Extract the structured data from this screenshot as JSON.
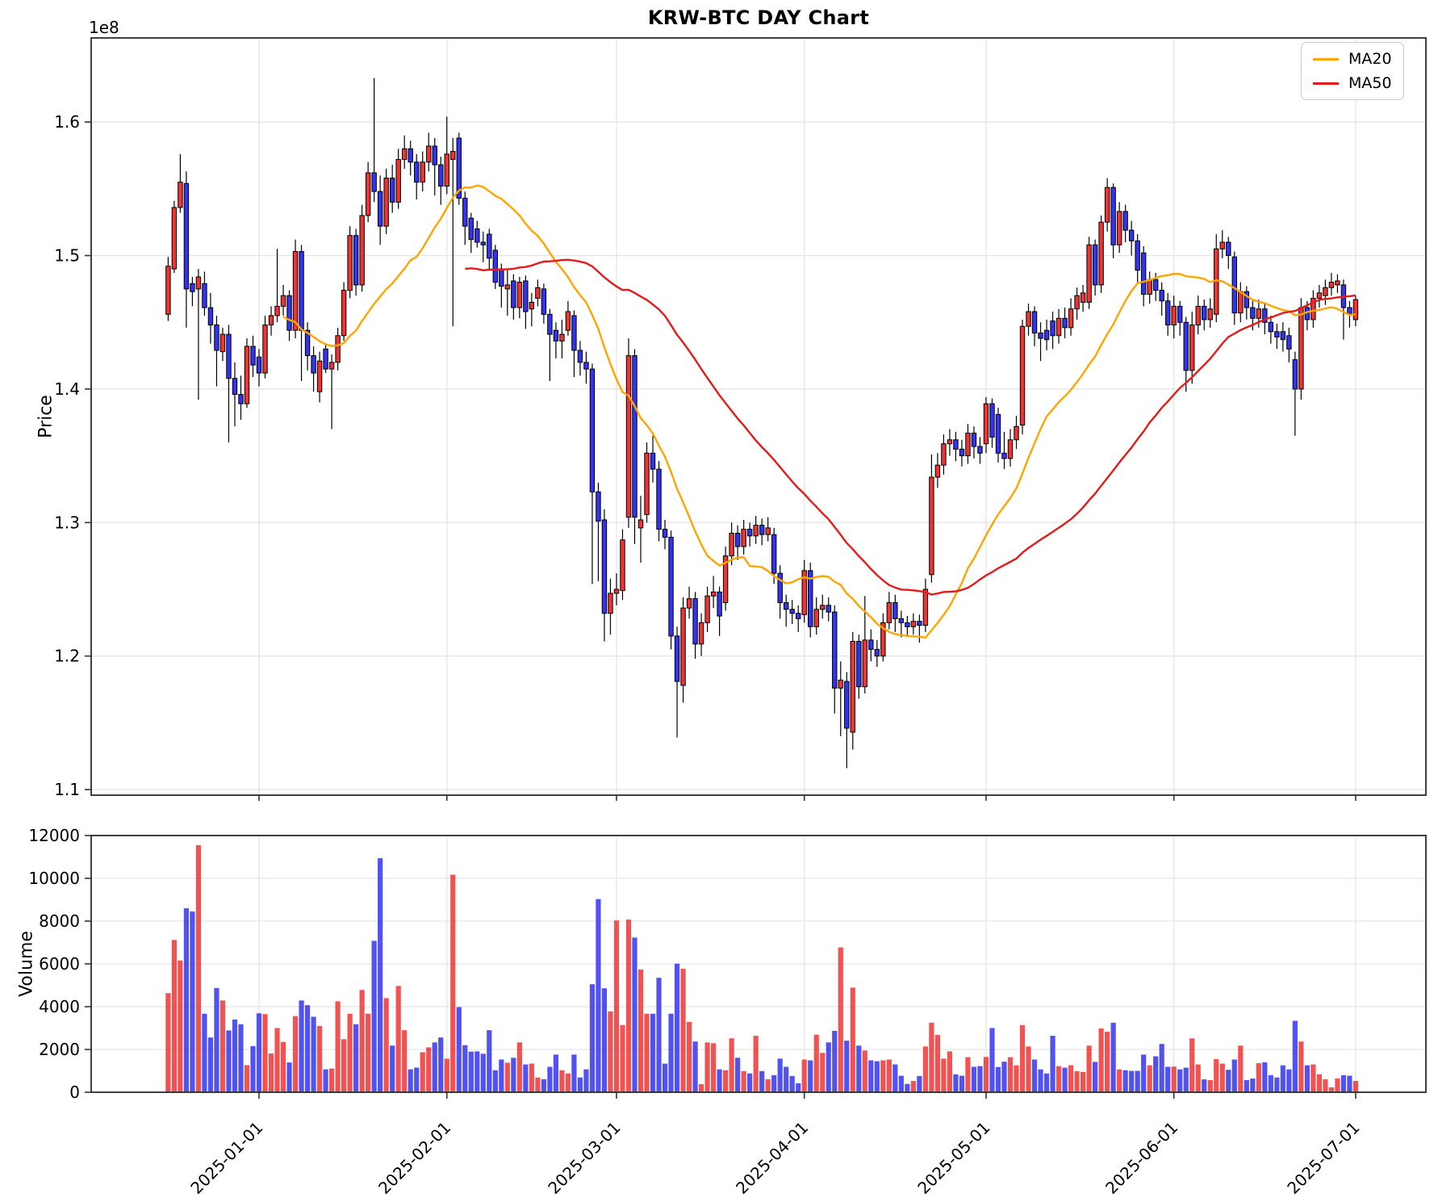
{
  "chart_data": {
    "type": "candlestick",
    "title": "KRW-BTC DAY Chart",
    "grid": true,
    "legend_position": "upper right",
    "legend": [
      {
        "name": "MA20",
        "color": "#ffa500",
        "window": 20
      },
      {
        "name": "MA50",
        "color": "#e51b1b",
        "window": 50
      }
    ],
    "colors": {
      "up": "#ef3434",
      "down": "#3434ef",
      "wick": "#000000",
      "grid": "#e5e5e5",
      "spine": "#2b2b2b"
    },
    "panels": [
      {
        "name": "price",
        "ylabel": "Price",
        "offset_label": "1e8",
        "ylim": [
          1.0958,
          1.663
        ],
        "yticks": [
          1.1,
          1.2,
          1.3,
          1.4,
          1.5,
          1.6
        ]
      },
      {
        "name": "volume",
        "ylabel": "Volume",
        "ylim": [
          0,
          12000
        ],
        "yticks": [
          0,
          2000,
          4000,
          6000,
          8000,
          10000,
          12000
        ]
      }
    ],
    "xticks": [
      {
        "label": "2025-01-01",
        "day": 15
      },
      {
        "label": "2025-02-01",
        "day": 46
      },
      {
        "label": "2025-03-01",
        "day": 74
      },
      {
        "label": "2025-04-01",
        "day": 105
      },
      {
        "label": "2025-05-01",
        "day": 135
      },
      {
        "label": "2025-06-01",
        "day": 166
      },
      {
        "label": "2025-07-01",
        "day": 196
      }
    ],
    "price_unit": "1e8",
    "open": [
      1.456,
      1.49,
      1.536,
      1.554,
      1.479,
      1.475,
      1.479,
      1.461,
      1.448,
      1.428,
      1.441,
      1.408,
      1.396,
      1.389,
      1.432,
      1.424,
      1.412,
      1.448,
      1.455,
      1.462,
      1.47,
      1.444,
      1.503,
      1.444,
      1.425,
      1.398,
      1.43,
      1.415,
      1.42,
      1.44,
      1.474,
      1.515,
      1.478,
      1.53,
      1.562,
      1.548,
      1.522,
      1.558,
      1.54,
      1.572,
      1.58,
      1.57,
      1.555,
      1.57,
      1.582,
      1.568,
      1.552,
      1.572,
      1.588,
      1.543,
      1.528,
      1.52,
      1.51,
      1.516,
      1.504,
      1.49,
      1.475,
      1.481,
      1.461,
      1.481,
      1.46,
      1.468,
      1.475,
      1.456,
      1.444,
      1.436,
      1.444,
      1.455,
      1.429,
      1.42,
      1.415,
      1.323,
      1.302,
      1.232,
      1.247,
      1.249,
      1.304,
      1.425,
      1.296,
      1.306,
      1.352,
      1.34,
      1.295,
      1.289,
      1.215,
      1.178,
      1.236,
      1.243,
      1.209,
      1.225,
      1.245,
      1.248,
      1.24,
      1.275,
      1.292,
      1.282,
      1.295,
      1.29,
      1.298,
      1.291,
      1.291,
      1.262,
      1.24,
      1.235,
      1.232,
      1.231,
      1.264,
      1.222,
      1.235,
      1.238,
      1.233,
      1.176,
      1.181,
      1.143,
      1.211,
      1.177,
      1.212,
      1.205,
      1.2,
      1.225,
      1.24,
      1.228,
      1.225,
      1.222,
      1.226,
      1.223,
      1.261,
      1.334,
      1.343,
      1.359,
      1.362,
      1.355,
      1.35,
      1.367,
      1.357,
      1.359,
      1.389,
      1.381,
      1.352,
      1.348,
      1.362,
      1.373,
      1.447,
      1.458,
      1.442,
      1.444,
      1.451,
      1.44,
      1.453,
      1.446,
      1.46,
      1.465,
      1.465,
      1.508,
      1.478,
      1.525,
      1.551,
      1.508,
      1.533,
      1.519,
      1.511,
      1.502,
      1.471,
      1.482,
      1.474,
      1.466,
      1.448,
      1.462,
      1.45,
      1.414,
      1.448,
      1.462,
      1.452,
      1.456,
      1.505,
      1.51,
      1.499,
      1.457,
      1.473,
      1.461,
      1.453,
      1.46,
      1.45,
      1.443,
      1.443,
      1.44,
      1.422,
      1.4,
      1.461,
      1.452,
      1.468,
      1.47,
      1.476,
      1.478,
      1.478,
      1.461,
      1.452
    ],
    "high": [
      1.499,
      1.541,
      1.576,
      1.563,
      1.484,
      1.49,
      1.488,
      1.472,
      1.455,
      1.446,
      1.448,
      1.42,
      1.41,
      1.438,
      1.44,
      1.43,
      1.455,
      1.462,
      1.505,
      1.478,
      1.474,
      1.512,
      1.508,
      1.45,
      1.432,
      1.428,
      1.434,
      1.426,
      1.446,
      1.48,
      1.522,
      1.52,
      1.538,
      1.57,
      1.633,
      1.56,
      1.565,
      1.568,
      1.58,
      1.59,
      1.586,
      1.576,
      1.578,
      1.592,
      1.588,
      1.574,
      1.604,
      1.588,
      1.592,
      1.548,
      1.532,
      1.526,
      1.518,
      1.52,
      1.508,
      1.494,
      1.489,
      1.486,
      1.484,
      1.485,
      1.472,
      1.482,
      1.479,
      1.46,
      1.45,
      1.452,
      1.466,
      1.459,
      1.436,
      1.428,
      1.419,
      1.33,
      1.31,
      1.258,
      1.262,
      1.295,
      1.438,
      1.43,
      1.32,
      1.36,
      1.365,
      1.346,
      1.302,
      1.294,
      1.222,
      1.244,
      1.252,
      1.248,
      1.232,
      1.252,
      1.26,
      1.252,
      1.282,
      1.3,
      1.298,
      1.302,
      1.3,
      1.305,
      1.303,
      1.304,
      1.296,
      1.268,
      1.246,
      1.242,
      1.238,
      1.272,
      1.27,
      1.244,
      1.246,
      1.244,
      1.238,
      1.196,
      1.188,
      1.218,
      1.216,
      1.245,
      1.22,
      1.212,
      1.232,
      1.248,
      1.246,
      1.234,
      1.23,
      1.232,
      1.231,
      1.258,
      1.351,
      1.352,
      1.366,
      1.37,
      1.368,
      1.362,
      1.374,
      1.372,
      1.364,
      1.394,
      1.393,
      1.386,
      1.368,
      1.37,
      1.38,
      1.452,
      1.464,
      1.462,
      1.45,
      1.452,
      1.458,
      1.46,
      1.461,
      1.468,
      1.476,
      1.478,
      1.514,
      1.512,
      1.53,
      1.558,
      1.554,
      1.54,
      1.538,
      1.526,
      1.516,
      1.507,
      1.488,
      1.487,
      1.48,
      1.472,
      1.47,
      1.466,
      1.454,
      1.458,
      1.47,
      1.467,
      1.468,
      1.516,
      1.519,
      1.514,
      1.503,
      1.48,
      1.477,
      1.466,
      1.467,
      1.464,
      1.455,
      1.449,
      1.45,
      1.446,
      1.428,
      1.468,
      1.466,
      1.474,
      1.478,
      1.482,
      1.487,
      1.486,
      1.482,
      1.466,
      1.47
    ],
    "low": [
      1.451,
      1.487,
      1.532,
      1.446,
      1.462,
      1.392,
      1.455,
      1.434,
      1.402,
      1.421,
      1.36,
      1.372,
      1.377,
      1.386,
      1.409,
      1.402,
      1.408,
      1.44,
      1.45,
      1.455,
      1.436,
      1.438,
      1.406,
      1.414,
      1.398,
      1.39,
      1.412,
      1.37,
      1.414,
      1.436,
      1.468,
      1.47,
      1.473,
      1.525,
      1.54,
      1.508,
      1.516,
      1.532,
      1.535,
      1.565,
      1.56,
      1.542,
      1.548,
      1.563,
      1.545,
      1.538,
      1.546,
      1.447,
      1.538,
      1.508,
      1.502,
      1.506,
      1.495,
      1.489,
      1.475,
      1.461,
      1.455,
      1.452,
      1.453,
      1.445,
      1.447,
      1.462,
      1.449,
      1.406,
      1.423,
      1.423,
      1.44,
      1.409,
      1.41,
      1.404,
      1.254,
      1.256,
      1.211,
      1.216,
      1.238,
      1.242,
      1.296,
      1.284,
      1.27,
      1.3,
      1.33,
      1.286,
      1.28,
      1.205,
      1.139,
      1.165,
      1.228,
      1.198,
      1.2,
      1.218,
      1.236,
      1.215,
      1.234,
      1.268,
      1.272,
      1.276,
      1.282,
      1.284,
      1.283,
      1.286,
      1.254,
      1.228,
      1.222,
      1.224,
      1.218,
      1.225,
      1.214,
      1.216,
      1.228,
      1.226,
      1.157,
      1.14,
      1.116,
      1.13,
      1.168,
      1.172,
      1.196,
      1.192,
      1.196,
      1.22,
      1.218,
      1.214,
      1.215,
      1.216,
      1.21,
      1.218,
      1.255,
      1.326,
      1.336,
      1.35,
      1.346,
      1.342,
      1.344,
      1.348,
      1.344,
      1.352,
      1.356,
      1.345,
      1.34,
      1.342,
      1.355,
      1.366,
      1.44,
      1.432,
      1.421,
      1.429,
      1.43,
      1.434,
      1.438,
      1.44,
      1.452,
      1.458,
      1.46,
      1.47,
      1.472,
      1.518,
      1.498,
      1.502,
      1.51,
      1.5,
      1.48,
      1.462,
      1.464,
      1.466,
      1.455,
      1.44,
      1.438,
      1.44,
      1.398,
      1.404,
      1.441,
      1.444,
      1.446,
      1.45,
      1.498,
      1.49,
      1.448,
      1.45,
      1.452,
      1.444,
      1.446,
      1.441,
      1.434,
      1.43,
      1.428,
      1.42,
      1.365,
      1.392,
      1.444,
      1.446,
      1.461,
      1.463,
      1.47,
      1.472,
      1.437,
      1.446,
      1.447
    ],
    "close": [
      1.492,
      1.536,
      1.555,
      1.475,
      1.473,
      1.484,
      1.461,
      1.448,
      1.429,
      1.441,
      1.408,
      1.396,
      1.389,
      1.432,
      1.418,
      1.412,
      1.448,
      1.455,
      1.462,
      1.47,
      1.444,
      1.503,
      1.444,
      1.425,
      1.412,
      1.421,
      1.415,
      1.42,
      1.44,
      1.474,
      1.515,
      1.478,
      1.53,
      1.562,
      1.548,
      1.522,
      1.558,
      1.54,
      1.572,
      1.58,
      1.57,
      1.555,
      1.57,
      1.582,
      1.568,
      1.552,
      1.576,
      1.578,
      1.543,
      1.522,
      1.512,
      1.51,
      1.508,
      1.498,
      1.48,
      1.477,
      1.478,
      1.461,
      1.48,
      1.458,
      1.465,
      1.476,
      1.456,
      1.441,
      1.436,
      1.441,
      1.458,
      1.429,
      1.42,
      1.415,
      1.323,
      1.301,
      1.232,
      1.247,
      1.25,
      1.287,
      1.425,
      1.304,
      1.302,
      1.352,
      1.34,
      1.295,
      1.289,
      1.215,
      1.181,
      1.236,
      1.243,
      1.209,
      1.225,
      1.245,
      1.248,
      1.23,
      1.275,
      1.292,
      1.282,
      1.295,
      1.29,
      1.298,
      1.291,
      1.296,
      1.262,
      1.24,
      1.235,
      1.232,
      1.228,
      1.264,
      1.222,
      1.235,
      1.238,
      1.233,
      1.176,
      1.182,
      1.146,
      1.211,
      1.177,
      1.212,
      1.205,
      1.2,
      1.225,
      1.24,
      1.228,
      1.225,
      1.222,
      1.226,
      1.223,
      1.25,
      1.334,
      1.343,
      1.359,
      1.362,
      1.355,
      1.35,
      1.367,
      1.357,
      1.352,
      1.389,
      1.364,
      1.352,
      1.348,
      1.362,
      1.372,
      1.447,
      1.458,
      1.442,
      1.438,
      1.437,
      1.44,
      1.453,
      1.446,
      1.46,
      1.47,
      1.472,
      1.508,
      1.478,
      1.525,
      1.551,
      1.508,
      1.533,
      1.519,
      1.511,
      1.489,
      1.471,
      1.482,
      1.474,
      1.466,
      1.448,
      1.462,
      1.45,
      1.414,
      1.448,
      1.462,
      1.452,
      1.46,
      1.505,
      1.51,
      1.5,
      1.457,
      1.473,
      1.461,
      1.453,
      1.46,
      1.45,
      1.443,
      1.439,
      1.437,
      1.43,
      1.4,
      1.461,
      1.452,
      1.468,
      1.472,
      1.476,
      1.48,
      1.481,
      1.461,
      1.456,
      1.467
    ],
    "volume": [
      4630,
      7120,
      6160,
      8600,
      8450,
      11550,
      3670,
      2560,
      4870,
      4290,
      2890,
      3400,
      3180,
      1270,
      2160,
      3690,
      3650,
      1810,
      3000,
      2350,
      1390,
      3560,
      4290,
      4070,
      3530,
      3100,
      1070,
      1110,
      4250,
      2480,
      3670,
      3180,
      4780,
      3670,
      7080,
      10940,
      4400,
      2180,
      4970,
      2900,
      1070,
      1150,
      1870,
      2100,
      2330,
      2560,
      1570,
      10170,
      3980,
      2200,
      1900,
      1910,
      1800,
      2900,
      1030,
      1530,
      1380,
      1610,
      2330,
      1300,
      1340,
      690,
      610,
      1190,
      1760,
      1030,
      880,
      1760,
      690,
      1070,
      5050,
      9030,
      4860,
      3780,
      8030,
      3140,
      8070,
      7230,
      5740,
      3670,
      3670,
      5350,
      1340,
      3670,
      6010,
      5770,
      3290,
      2370,
      380,
      2330,
      2290,
      1070,
      1030,
      2520,
      1610,
      990,
      880,
      2640,
      990,
      610,
      800,
      1570,
      1190,
      760,
      420,
      1530,
      1490,
      2690,
      1840,
      2330,
      2870,
      6770,
      2410,
      4890,
      2180,
      1950,
      1490,
      1450,
      1490,
      1530,
      1300,
      770,
      390,
      530,
      760,
      2140,
      3250,
      2680,
      1570,
      1910,
      840,
      770,
      1640,
      1190,
      1220,
      1650,
      3000,
      1180,
      1430,
      1640,
      1260,
      3140,
      2140,
      1530,
      1070,
      880,
      2640,
      1220,
      1150,
      1260,
      990,
      950,
      2180,
      1420,
      2980,
      2830,
      3250,
      1070,
      1030,
      1000,
      1000,
      1760,
      1260,
      1680,
      2260,
      1190,
      1200,
      1070,
      1150,
      2520,
      1300,
      600,
      570,
      1550,
      1340,
      1050,
      1530,
      2180,
      570,
      640,
      1360,
      1400,
      800,
      690,
      1260,
      1070,
      3340,
      2370,
      1260,
      1300,
      840,
      610,
      230,
      640,
      800,
      770,
      530
    ]
  }
}
